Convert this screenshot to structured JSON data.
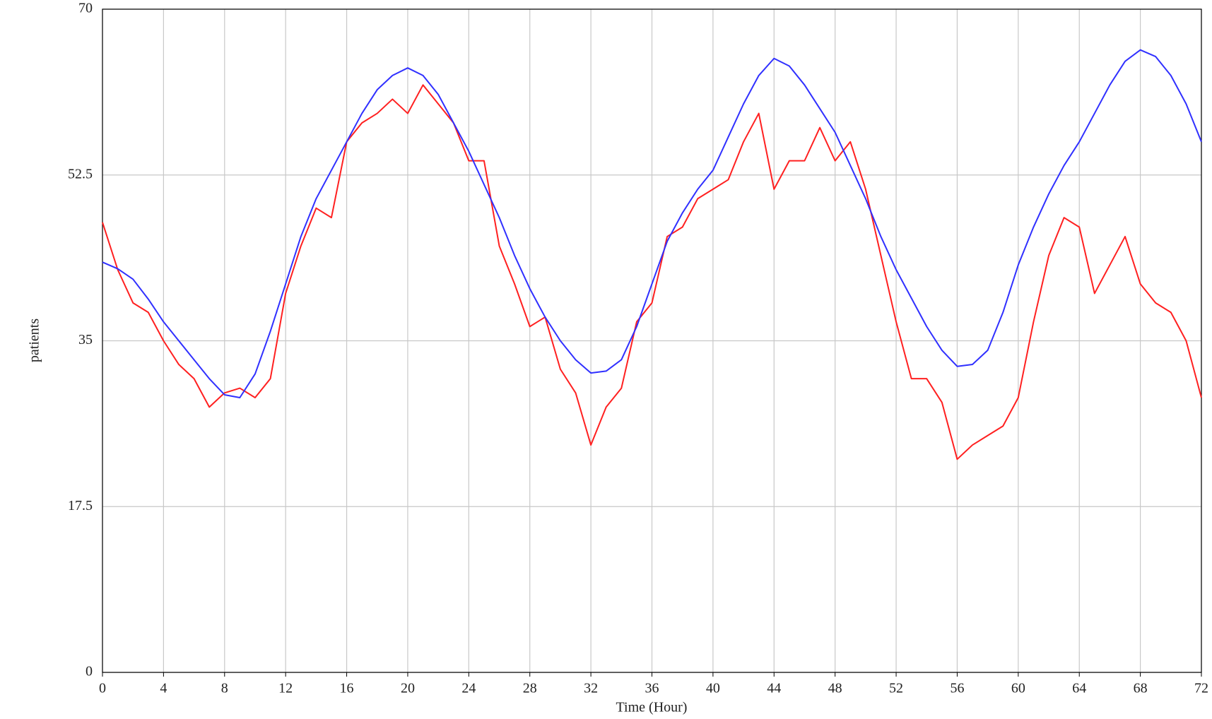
{
  "chart_data": {
    "type": "line",
    "x_label": "Time (Hour)",
    "y_label": "patients",
    "x": [
      0,
      1,
      2,
      3,
      4,
      5,
      6,
      7,
      8,
      9,
      10,
      11,
      12,
      13,
      14,
      15,
      16,
      17,
      18,
      19,
      20,
      21,
      22,
      23,
      24,
      25,
      26,
      27,
      28,
      29,
      30,
      31,
      32,
      33,
      34,
      35,
      36,
      37,
      38,
      39,
      40,
      41,
      42,
      43,
      44,
      45,
      46,
      47,
      48,
      49,
      50,
      51,
      52,
      53,
      54,
      55,
      56,
      57,
      58,
      59,
      60,
      61,
      62,
      63,
      64,
      65,
      66,
      67,
      68,
      69,
      70,
      71,
      72
    ],
    "series": [
      {
        "color": "#ff2020",
        "values": [
          47.5,
          42.5,
          39,
          38,
          35,
          32.5,
          31,
          28,
          29.5,
          30,
          29,
          31,
          40,
          45,
          49,
          48,
          56,
          58,
          59,
          60.5,
          59,
          62,
          60,
          58,
          54,
          54,
          45,
          41,
          36.5,
          37.5,
          32,
          29.5,
          24,
          28,
          30,
          37,
          39,
          46,
          47,
          50,
          51,
          52,
          56,
          59,
          51,
          54,
          54,
          57.5,
          54,
          56,
          51,
          44,
          37,
          31,
          31,
          28.5,
          22.5,
          24,
          25,
          26,
          29,
          37,
          44,
          48,
          47,
          40,
          43,
          46,
          41,
          39,
          38,
          35,
          29
        ]
      },
      {
        "color": "#3030ff",
        "values": [
          43.3,
          42.6,
          41.5,
          39.4,
          37,
          35,
          33,
          31,
          29.3,
          29,
          31.5,
          36,
          41,
          46,
          50,
          53,
          56,
          59,
          61.5,
          63,
          63.8,
          63,
          61,
          58,
          55,
          51.5,
          48,
          44,
          40.5,
          37.5,
          35,
          33,
          31.6,
          31.8,
          33,
          36.5,
          41,
          45.5,
          48.5,
          51,
          53,
          56.5,
          60,
          63,
          64.8,
          64,
          62,
          59.5,
          57,
          53.5,
          50,
          46,
          42.5,
          39.5,
          36.5,
          34,
          32.3,
          32.5,
          34,
          38,
          43,
          47,
          50.5,
          53.5,
          56,
          59,
          62,
          64.5,
          65.7,
          65,
          63,
          60,
          56
        ]
      }
    ],
    "xlim": [
      0,
      72
    ],
    "xticks": [
      0,
      4,
      8,
      12,
      16,
      20,
      24,
      28,
      32,
      36,
      40,
      44,
      48,
      52,
      56,
      60,
      64,
      68,
      72
    ],
    "ylim": [
      0,
      70
    ],
    "yticks": [
      0,
      17.5,
      35,
      52.5,
      70
    ],
    "grid": true
  }
}
